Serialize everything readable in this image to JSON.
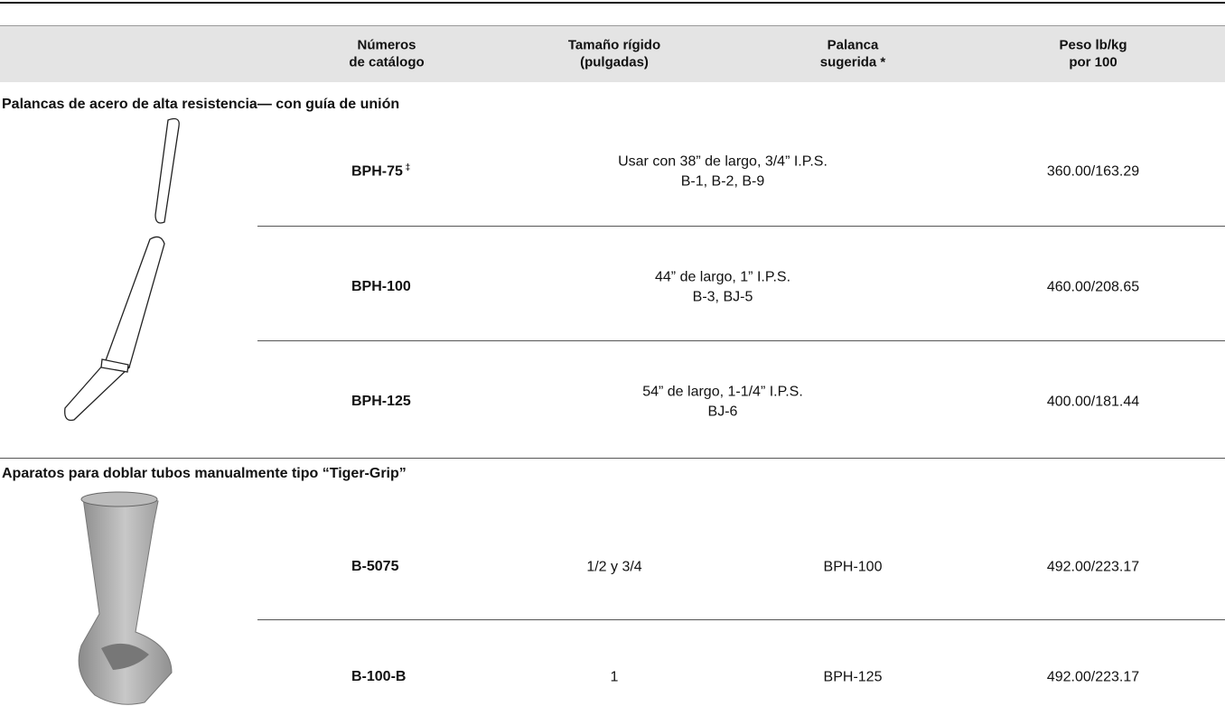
{
  "header": {
    "columns": [
      [
        "Números",
        "de catálogo"
      ],
      [
        "Tamaño rígido",
        "(pulgadas)"
      ],
      [
        "Palanca",
        "sugerida *"
      ],
      [
        "Peso lb/kg",
        "por 100"
      ]
    ]
  },
  "sections": [
    {
      "title": "Palancas de acero de alta resistencia— con guía de unión",
      "rows": [
        {
          "catalog": "BPH-75",
          "mark": "‡",
          "description": [
            "Usar con 38” de largo, 3/4” I.P.S.",
            "B-1, B-2, B-9"
          ],
          "weight": "360.00/163.29"
        },
        {
          "catalog": "BPH-100",
          "description": [
            "44” de largo, 1” I.P.S.",
            "B-3, BJ-5"
          ],
          "weight": "460.00/208.65"
        },
        {
          "catalog": "BPH-125",
          "description": [
            "54” de largo, 1-1/4” I.P.S.",
            "BJ-6"
          ],
          "weight": "400.00/181.44"
        }
      ]
    },
    {
      "title": "Aparatos para doblar tubos manualmente tipo “Tiger-Grip”",
      "rows": [
        {
          "catalog": "B-5075",
          "size": "1/2 y 3/4",
          "lever": "BPH-100",
          "weight": "492.00/223.17"
        },
        {
          "catalog": "B-100-B",
          "size": "1",
          "lever": "BPH-125",
          "weight": "492.00/223.17"
        }
      ]
    }
  ]
}
